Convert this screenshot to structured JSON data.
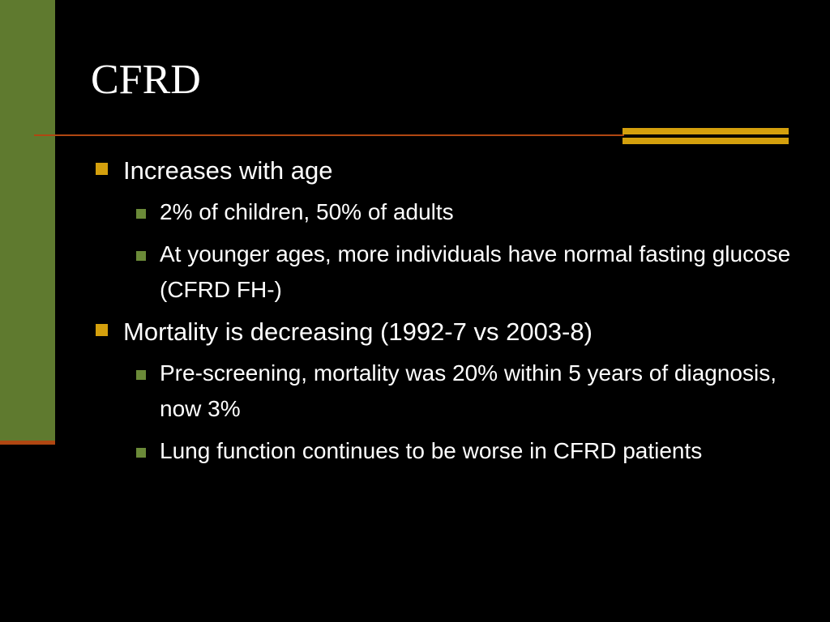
{
  "slide": {
    "title": "CFRD",
    "bullets": [
      {
        "text": "Increases with age",
        "sub": [
          "2% of children, 50% of adults",
          "At younger ages, more individuals have normal fasting glucose (CFRD FH-)"
        ]
      },
      {
        "text": "Mortality is decreasing (1992-7 vs 2003-8)",
        "sub": [
          "Pre-screening, mortality was 20% within 5 years of diagnosis, now 3%",
          "Lung function continues to be worse in CFRD patients"
        ]
      }
    ]
  },
  "theme": {
    "background": "#000000",
    "left_bar": "#5f7a2f",
    "rule": "#b04712",
    "accent": "#d4a00d",
    "sub_bullet": "#6b8a38",
    "text": "#ffffff"
  }
}
